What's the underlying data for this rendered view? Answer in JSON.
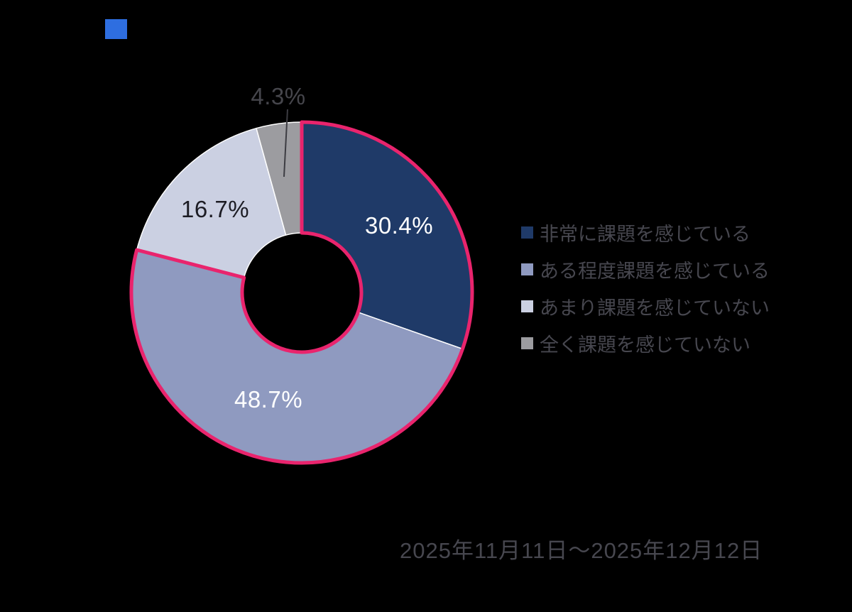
{
  "page": {
    "background": "#000000"
  },
  "header": {
    "marker_color": "#2e6ee0"
  },
  "colors": {
    "muted_text": "#47474f",
    "leader_line": "#3c3c42",
    "slice_separator": "#ffffff"
  },
  "chart_data": {
    "type": "pie",
    "subtype": "donut",
    "categories": [
      "非常に課題を感じている",
      "ある程度課題を感じている",
      "あまり課題を感じていない",
      "全く課題を感じていない"
    ],
    "values": [
      30.4,
      48.7,
      16.7,
      4.3
    ],
    "labels": [
      "30.4%",
      "48.7%",
      "16.7%",
      "4.3%"
    ],
    "unit": "%",
    "colors": [
      "#1f3a68",
      "#8f9ac0",
      "#cbd0e2",
      "#9c9ca0"
    ],
    "label_colors": [
      "#ffffff",
      "#ffffff",
      "#1c1c24",
      "#46464c"
    ],
    "highlight_slices": 2,
    "highlight_color": "#e9246d",
    "start_angle_deg": 0,
    "direction": "clockwise",
    "donut_hole_ratio": 0.35,
    "legend_position": "right"
  },
  "footer": {
    "survey_period": "2025年11月11日〜2025年12月12日"
  }
}
